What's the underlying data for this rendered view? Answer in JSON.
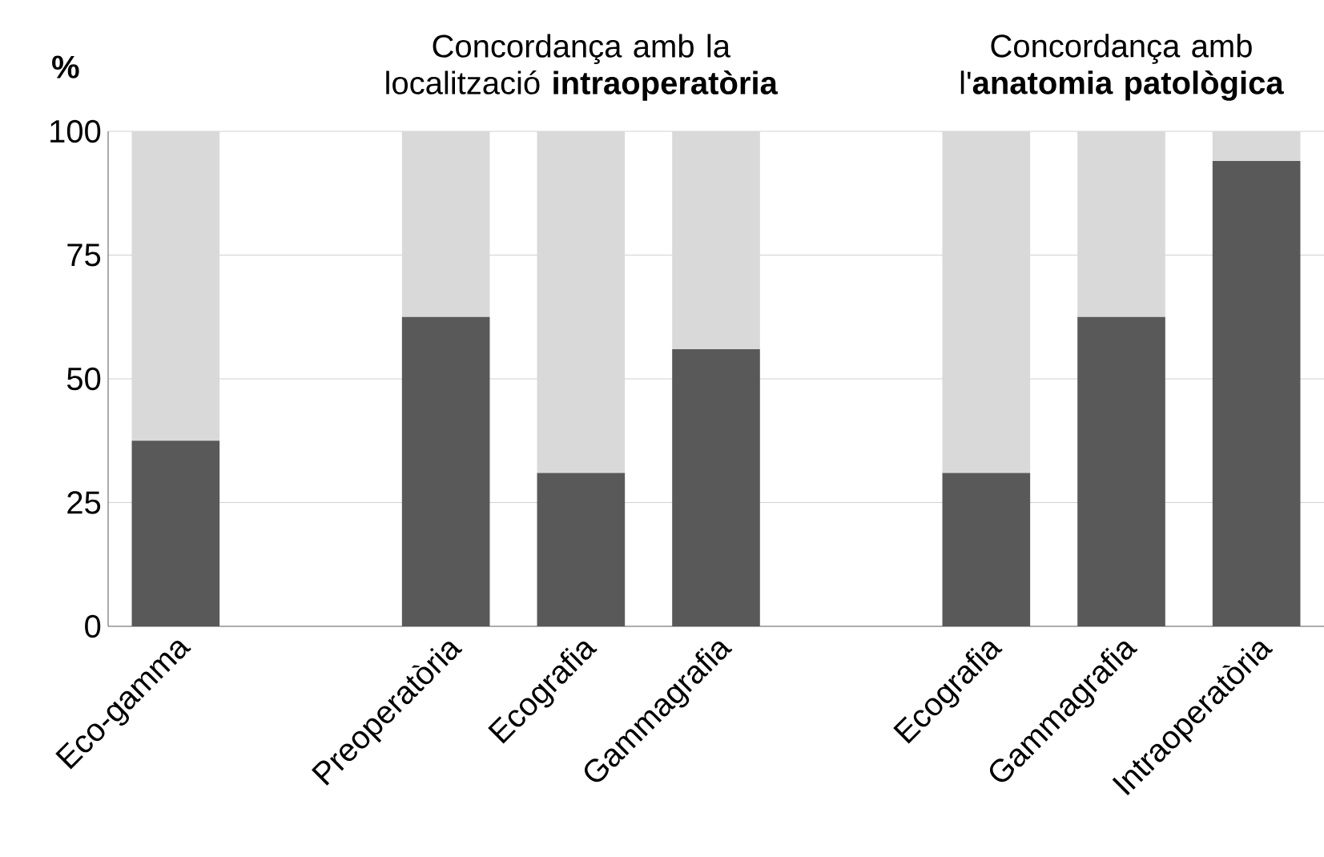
{
  "chart_data": {
    "type": "bar",
    "stacked": true,
    "ylabel": "%",
    "annotations": [
      "Concordança amb la localització **intraoperatòria**",
      "Concordança amb l'**anatomia patològica**"
    ],
    "categories": [
      "Eco-gamma",
      null,
      "Preoperatòria",
      "Ecografia",
      "Gammagrafia",
      null,
      "Ecografia",
      "Gammagrafia",
      "Intraoperatòria"
    ],
    "series": [
      {
        "color": "#595959",
        "values": [
          37.5,
          null,
          62.5,
          31,
          56,
          null,
          31,
          62.5,
          94
        ]
      },
      {
        "color": "#d9d9d9",
        "values": [
          62.5,
          null,
          37.5,
          69,
          44,
          null,
          69,
          37.5,
          6
        ]
      }
    ],
    "ylim": [
      0,
      100
    ],
    "yticks": [
      0,
      25,
      50,
      75,
      100
    ],
    "grid": "y"
  }
}
